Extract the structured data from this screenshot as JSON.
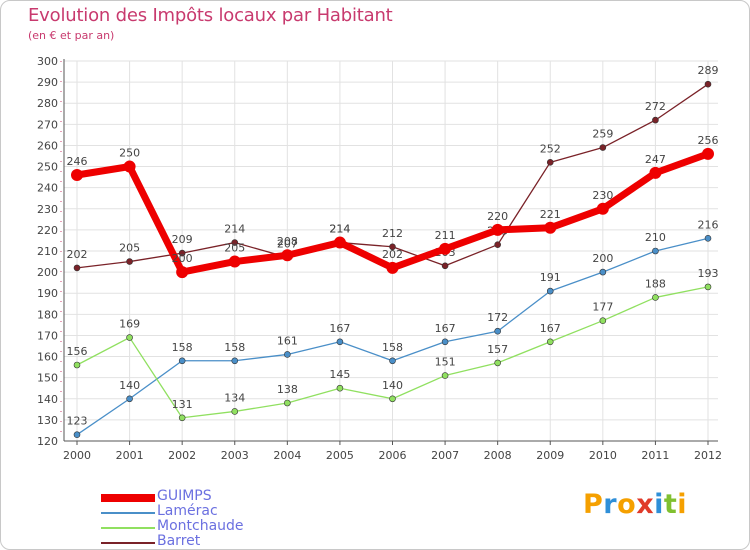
{
  "chart_data": {
    "type": "line",
    "title": "Evolution des Impôts locaux par Habitant",
    "subtitle": "(en € et par an)",
    "x": [
      "2000",
      "2001",
      "2002",
      "2003",
      "2004",
      "2005",
      "2006",
      "2007",
      "2008",
      "2009",
      "2010",
      "2011",
      "2012"
    ],
    "ylim": [
      120,
      300
    ],
    "yticks": [
      120,
      130,
      140,
      150,
      160,
      170,
      180,
      190,
      200,
      210,
      220,
      230,
      240,
      250,
      260,
      270,
      280,
      290,
      300
    ],
    "grid": true,
    "legend_position": "bottom-left",
    "series": [
      {
        "name": "GUIMPS",
        "color": "#ee0000",
        "values": [
          246,
          250,
          200,
          205,
          208,
          214,
          202,
          211,
          220,
          221,
          230,
          247,
          256
        ],
        "labels": [
          "246",
          "250",
          "200",
          "205",
          "208",
          "214",
          "202",
          "211",
          "220",
          "221",
          "230",
          "247",
          "256"
        ]
      },
      {
        "name": "Lamérac",
        "color": "#4a8fc8",
        "values": [
          123,
          140,
          158,
          158,
          161,
          167,
          158,
          167,
          172,
          191,
          200,
          210,
          216
        ],
        "labels": [
          "123",
          "140",
          "158",
          "158",
          "161",
          "167",
          "158",
          "167",
          "172",
          "191",
          "200",
          "210",
          "216"
        ]
      },
      {
        "name": "Montchaude",
        "color": "#90e060",
        "values": [
          156,
          169,
          131,
          134,
          138,
          145,
          140,
          151,
          157,
          167,
          177,
          188,
          193
        ],
        "labels": [
          "156",
          "169",
          "131",
          "134",
          "138",
          "145",
          "140",
          "151",
          "157",
          "167",
          "177",
          "188",
          "193"
        ]
      },
      {
        "name": "Barret",
        "color": "#7a2228",
        "values": [
          202,
          205,
          209,
          214,
          207,
          214,
          212,
          203,
          213,
          252,
          259,
          272,
          289
        ],
        "labels": [
          "202",
          "205",
          "209",
          "214",
          "207",
          "214",
          "212",
          "203",
          "213",
          "252",
          "259",
          "272",
          "289"
        ]
      }
    ]
  },
  "logo": {
    "text": "Proxiti",
    "letters": [
      {
        "ch": "P",
        "color": "#f5a000"
      },
      {
        "ch": "r",
        "color": "#2f8fd8"
      },
      {
        "ch": "o",
        "color": "#f5a000"
      },
      {
        "ch": "x",
        "color": "#e03a2a"
      },
      {
        "ch": "i",
        "color": "#2f8fd8"
      },
      {
        "ch": "t",
        "color": "#80c030"
      },
      {
        "ch": "i",
        "color": "#f5a000"
      }
    ]
  }
}
